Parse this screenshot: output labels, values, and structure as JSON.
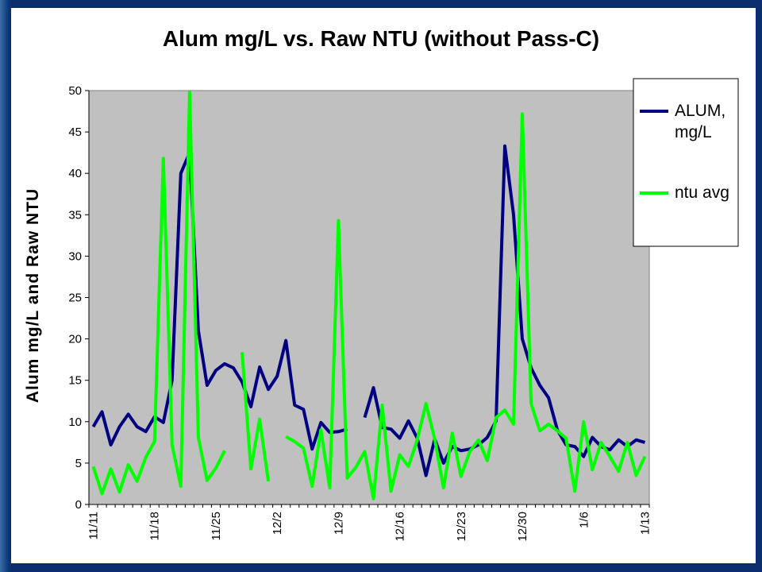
{
  "colors": {
    "plot_bg": "#c0c0c0",
    "alum": "#000080",
    "ntu": "#00ff00"
  },
  "chart_data": {
    "type": "line",
    "title": "Alum mg/L vs. Raw NTU (without Pass-C)",
    "xlabel": "",
    "ylabel": "Alum mg/L and Raw NTU",
    "ylim": [
      0,
      50
    ],
    "yticks": [
      0,
      5,
      10,
      15,
      20,
      25,
      30,
      35,
      40,
      45,
      50
    ],
    "x_tick_labels": [
      "11/11",
      "11/18",
      "11/25",
      "12/2",
      "12/9",
      "12/16",
      "12/23",
      "12/30",
      "1/6",
      "1/13"
    ],
    "x_tick_days": [
      0,
      7,
      14,
      21,
      28,
      35,
      42,
      49,
      56,
      63
    ],
    "grid": false,
    "legend_position": "top-right",
    "series": [
      {
        "name": "ALUM,\nmg/L",
        "legend_lines": [
          "ALUM,",
          "mg/L"
        ],
        "color": "#000080",
        "points": [
          [
            0,
            9.4
          ],
          [
            1,
            11.2
          ],
          [
            2,
            7.2
          ],
          [
            3,
            9.4
          ],
          [
            4,
            10.9
          ],
          [
            5,
            9.4
          ],
          [
            6,
            8.8
          ],
          [
            7,
            10.6
          ],
          [
            8,
            9.9
          ],
          [
            9,
            15
          ],
          [
            10,
            40
          ],
          [
            11,
            42.5
          ],
          [
            12,
            21
          ],
          [
            13,
            14.4
          ],
          [
            14,
            16.2
          ],
          [
            15,
            17
          ],
          [
            16,
            16.5
          ],
          [
            17,
            14.8
          ],
          [
            18,
            11.8
          ],
          [
            19,
            16.6
          ],
          [
            20,
            13.9
          ],
          [
            21,
            15.5
          ],
          [
            22,
            19.8
          ],
          [
            23,
            12
          ],
          [
            24,
            11.5
          ],
          [
            25,
            6.7
          ],
          [
            26,
            9.9
          ],
          [
            27,
            8.7
          ],
          [
            28,
            8.8
          ],
          [
            29,
            9.1
          ],
          null,
          [
            31,
            10.5
          ],
          [
            32,
            14.1
          ],
          [
            33,
            9.3
          ],
          [
            34,
            9.1
          ],
          [
            35,
            8
          ],
          [
            36,
            10.1
          ],
          [
            37,
            8
          ],
          [
            38,
            3.5
          ],
          [
            39,
            7.9
          ],
          [
            40,
            5
          ],
          [
            41,
            7
          ],
          [
            42,
            6.5
          ],
          [
            43,
            6.7
          ],
          [
            44,
            7.2
          ],
          [
            45,
            8.1
          ],
          [
            46,
            10.1
          ],
          [
            47,
            43.3
          ],
          [
            48,
            35
          ],
          [
            49,
            20
          ],
          [
            50,
            16.5
          ],
          [
            51,
            14.4
          ],
          [
            52,
            12.9
          ],
          [
            53,
            9
          ],
          [
            54,
            7.2
          ],
          [
            55,
            7
          ],
          [
            56,
            5.8
          ],
          [
            57,
            8.1
          ],
          [
            58,
            7
          ],
          [
            59,
            6.6
          ],
          [
            60,
            7.8
          ],
          [
            61,
            7
          ],
          [
            62,
            7.8
          ],
          [
            63,
            7.5
          ]
        ]
      },
      {
        "name": "ntu avg",
        "legend_lines": [
          "ntu avg"
        ],
        "color": "#00ff00",
        "points": [
          [
            0,
            4.6
          ],
          [
            1,
            1.3
          ],
          [
            2,
            4.3
          ],
          [
            3,
            1.5
          ],
          [
            4,
            4.8
          ],
          [
            5,
            2.8
          ],
          [
            6,
            5.7
          ],
          [
            7,
            7.6
          ],
          [
            8,
            41.8
          ],
          [
            9,
            7.2
          ],
          [
            10,
            2.2
          ],
          [
            11,
            49.8
          ],
          [
            12,
            8.1
          ],
          [
            13,
            2.9
          ],
          [
            14,
            4.4
          ],
          [
            15,
            6.5
          ],
          null,
          [
            17,
            18.4
          ],
          [
            18,
            4.3
          ],
          [
            19,
            10.3
          ],
          [
            20,
            2.8
          ],
          null,
          [
            22,
            8.2
          ],
          [
            23,
            7.6
          ],
          [
            24,
            6.8
          ],
          [
            25,
            2.2
          ],
          [
            26,
            9
          ],
          [
            27,
            2
          ],
          [
            28,
            34.3
          ],
          [
            29,
            3.2
          ],
          [
            30,
            4.5
          ],
          [
            31,
            6.4
          ],
          [
            32,
            0.7
          ],
          [
            33,
            12
          ],
          [
            34,
            1.6
          ],
          [
            35,
            6
          ],
          [
            36,
            4.6
          ],
          [
            37,
            7.8
          ],
          [
            38,
            12.2
          ],
          [
            39,
            7.9
          ],
          [
            40,
            2
          ],
          [
            41,
            8.6
          ],
          [
            42,
            3.4
          ],
          [
            43,
            6.4
          ],
          [
            44,
            7.8
          ],
          [
            45,
            5.3
          ],
          [
            46,
            10.5
          ],
          [
            47,
            11.4
          ],
          [
            48,
            9.7
          ],
          [
            49,
            47.2
          ],
          [
            50,
            12.2
          ],
          [
            51,
            8.9
          ],
          [
            52,
            9.7
          ],
          [
            53,
            8.9
          ],
          [
            54,
            8
          ],
          [
            55,
            1.6
          ],
          [
            56,
            10
          ],
          [
            57,
            4.2
          ],
          [
            58,
            7.5
          ],
          [
            59,
            5.8
          ],
          [
            60,
            4
          ],
          [
            61,
            7.5
          ],
          [
            62,
            3.5
          ],
          [
            63,
            5.8
          ]
        ]
      }
    ]
  }
}
